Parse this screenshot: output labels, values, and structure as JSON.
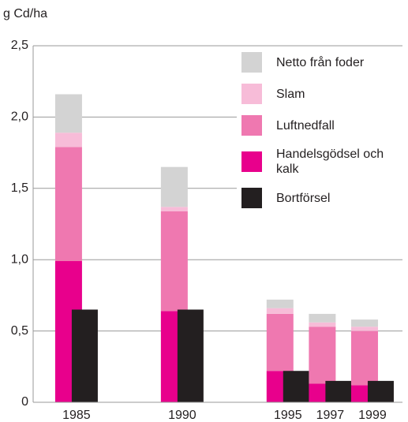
{
  "chart_data": {
    "type": "bar",
    "y_axis_label": "g Cd/ha",
    "x": [
      1985,
      1990,
      1995,
      1997,
      1999
    ],
    "xlim": [
      1982.95,
      2000.42
    ],
    "xticks": [
      1985,
      1990,
      1995,
      1997,
      1999
    ],
    "ylim": [
      0,
      2.5
    ],
    "yticks": [
      0,
      {
        "value": 0.5,
        "label": "0,5"
      },
      {
        "value": 1.0,
        "label": "1,0"
      },
      {
        "value": 1.5,
        "label": "1,5"
      },
      {
        "value": 2.0,
        "label": "2,0"
      },
      {
        "value": 2.5,
        "label": "2,5"
      }
    ],
    "grid": true,
    "legend": "top-right",
    "series": [
      {
        "name": "Handelsgödsel och kalk",
        "color": "#e8008c",
        "stack": 1,
        "values": [
          0.99,
          0.64,
          0.22,
          0.13,
          0.12
        ]
      },
      {
        "name": "Luftnedfall",
        "color": "#ef78b0",
        "stack": 1,
        "values": [
          0.8,
          0.7,
          0.4,
          0.4,
          0.38
        ]
      },
      {
        "name": "Slam",
        "color": "#f7bcd8",
        "stack": 1,
        "values": [
          0.1,
          0.03,
          0.04,
          0.03,
          0.03
        ]
      },
      {
        "name": "Netto från foder",
        "color": "#d3d3d3",
        "stack": 1,
        "values": [
          0.27,
          0.28,
          0.06,
          0.06,
          0.05
        ]
      },
      {
        "name": "Bortförsel",
        "color": "#231f20",
        "stack": 2,
        "values": [
          0.65,
          0.65,
          0.22,
          0.15,
          0.15
        ]
      }
    ]
  }
}
